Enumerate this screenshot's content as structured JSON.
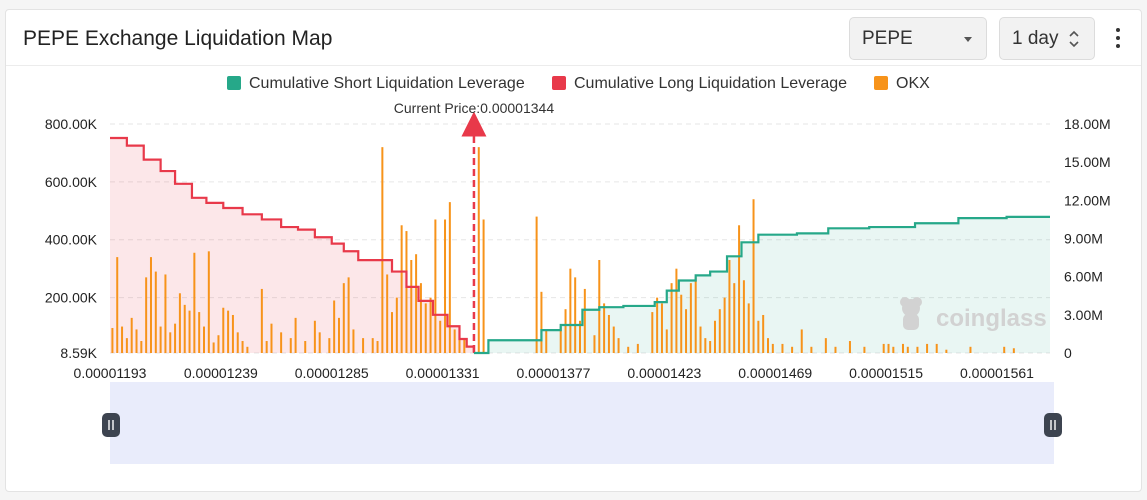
{
  "header": {
    "title": "PEPE Exchange Liquidation Map",
    "coin_select": "PEPE",
    "time_select": "1 day"
  },
  "chart_data": {
    "type": "bar",
    "current_price_label": "Current Price:0.00001344",
    "current_price": 1.344e-05,
    "legend": [
      {
        "name": "Cumulative Short Liquidation Leverage",
        "color": "#26a889"
      },
      {
        "name": "Cumulative Long Liquidation Leverage",
        "color": "#e8394a"
      },
      {
        "name": "OKX",
        "color": "#f7931a"
      }
    ],
    "x_ticks": [
      "0.00001193",
      "0.00001239",
      "0.00001285",
      "0.00001331",
      "0.00001377",
      "0.00001423",
      "0.00001469",
      "0.00001515",
      "0.00001561"
    ],
    "x_tick_values": [
      1.193e-05,
      1.239e-05,
      1.285e-05,
      1.331e-05,
      1.377e-05,
      1.423e-05,
      1.469e-05,
      1.515e-05,
      1.561e-05
    ],
    "xlim": [
      1.193e-05,
      1.583e-05
    ],
    "left_axis": {
      "ticks": [
        "8.59K",
        "200.00K",
        "400.00K",
        "600.00K",
        "800.00K"
      ],
      "tick_values": [
        8590,
        200000,
        400000,
        600000,
        800000
      ],
      "ylim": [
        8590,
        800000
      ]
    },
    "right_axis": {
      "ticks": [
        "0",
        "3.00M",
        "6.00M",
        "9.00M",
        "12.00M",
        "15.00M",
        "18.00M"
      ],
      "tick_values": [
        0,
        3000000,
        6000000,
        9000000,
        12000000,
        15000000,
        18000000
      ],
      "ylim": [
        0,
        18000000
      ]
    },
    "long_cumulative": [
      [
        1.193e-05,
        16900000
      ],
      [
        1.2e-05,
        16300000
      ],
      [
        1.207e-05,
        15200000
      ],
      [
        1.214e-05,
        14300000
      ],
      [
        1.22e-05,
        13300000
      ],
      [
        1.227e-05,
        12200000
      ],
      [
        1.233e-05,
        11800000
      ],
      [
        1.24e-05,
        11400000
      ],
      [
        1.248e-05,
        10900000
      ],
      [
        1.256e-05,
        10500000
      ],
      [
        1.264e-05,
        9900000
      ],
      [
        1.271e-05,
        9700000
      ],
      [
        1.278e-05,
        9100000
      ],
      [
        1.285e-05,
        8600000
      ],
      [
        1.29e-05,
        8000000
      ],
      [
        1.296e-05,
        7300000
      ],
      [
        1.306e-05,
        7300000
      ],
      [
        1.31e-05,
        6400000
      ],
      [
        1.316e-05,
        5200000
      ],
      [
        1.321e-05,
        4100000
      ],
      [
        1.327e-05,
        3000000
      ],
      [
        1.333e-05,
        2100000
      ],
      [
        1.338e-05,
        1100000
      ],
      [
        1.341e-05,
        500000
      ],
      [
        1.344e-05,
        0
      ]
    ],
    "short_cumulative": [
      [
        1.344e-05,
        0
      ],
      [
        1.35e-05,
        1000000
      ],
      [
        1.364e-05,
        1000000
      ],
      [
        1.372e-05,
        1800000
      ],
      [
        1.38e-05,
        2200000
      ],
      [
        1.389e-05,
        3400000
      ],
      [
        1.396e-05,
        3600000
      ],
      [
        1.406e-05,
        3700000
      ],
      [
        1.413e-05,
        3700000
      ],
      [
        1.419e-05,
        4000000
      ],
      [
        1.424e-05,
        4900000
      ],
      [
        1.429e-05,
        5700000
      ],
      [
        1.436e-05,
        6100000
      ],
      [
        1.442e-05,
        6400000
      ],
      [
        1.449e-05,
        7600000
      ],
      [
        1.455e-05,
        8700000
      ],
      [
        1.462e-05,
        9300000
      ],
      [
        1.47e-05,
        9300000
      ],
      [
        1.478e-05,
        9400000
      ],
      [
        1.491e-05,
        9800000
      ],
      [
        1.508e-05,
        9900000
      ],
      [
        1.527e-05,
        10200000
      ],
      [
        1.545e-05,
        10600000
      ],
      [
        1.565e-05,
        10700000
      ],
      [
        1.583e-05,
        10700000
      ]
    ],
    "okx_bars": [
      {
        "x": 1.194e-05,
        "v": 95000
      },
      {
        "x": 1.196e-05,
        "v": 340000
      },
      {
        "x": 1.198e-05,
        "v": 100000
      },
      {
        "x": 1.2e-05,
        "v": 60000
      },
      {
        "x": 1.202e-05,
        "v": 130000
      },
      {
        "x": 1.204e-05,
        "v": 90000
      },
      {
        "x": 1.206e-05,
        "v": 50000
      },
      {
        "x": 1.208e-05,
        "v": 270000
      },
      {
        "x": 1.21e-05,
        "v": 340000
      },
      {
        "x": 1.212e-05,
        "v": 290000
      },
      {
        "x": 1.214e-05,
        "v": 100000
      },
      {
        "x": 1.216e-05,
        "v": 280000
      },
      {
        "x": 1.218e-05,
        "v": 80000
      },
      {
        "x": 1.22e-05,
        "v": 110000
      },
      {
        "x": 1.222e-05,
        "v": 215000
      },
      {
        "x": 1.224e-05,
        "v": 175000
      },
      {
        "x": 1.226e-05,
        "v": 155000
      },
      {
        "x": 1.228e-05,
        "v": 355000
      },
      {
        "x": 1.23e-05,
        "v": 150000
      },
      {
        "x": 1.232e-05,
        "v": 100000
      },
      {
        "x": 1.234e-05,
        "v": 360000
      },
      {
        "x": 1.236e-05,
        "v": 45000
      },
      {
        "x": 1.238e-05,
        "v": 70000
      },
      {
        "x": 1.24e-05,
        "v": 165000
      },
      {
        "x": 1.242e-05,
        "v": 155000
      },
      {
        "x": 1.244e-05,
        "v": 140000
      },
      {
        "x": 1.246e-05,
        "v": 80000
      },
      {
        "x": 1.248e-05,
        "v": 50000
      },
      {
        "x": 1.25e-05,
        "v": 30000
      },
      {
        "x": 1.256e-05,
        "v": 230000
      },
      {
        "x": 1.258e-05,
        "v": 50000
      },
      {
        "x": 1.26e-05,
        "v": 110000
      },
      {
        "x": 1.264e-05,
        "v": 80000
      },
      {
        "x": 1.268e-05,
        "v": 60000
      },
      {
        "x": 1.27e-05,
        "v": 130000
      },
      {
        "x": 1.274e-05,
        "v": 50000
      },
      {
        "x": 1.278e-05,
        "v": 120000
      },
      {
        "x": 1.28e-05,
        "v": 80000
      },
      {
        "x": 1.284e-05,
        "v": 60000
      },
      {
        "x": 1.286e-05,
        "v": 190000
      },
      {
        "x": 1.288e-05,
        "v": 130000
      },
      {
        "x": 1.29e-05,
        "v": 250000
      },
      {
        "x": 1.292e-05,
        "v": 270000
      },
      {
        "x": 1.294e-05,
        "v": 90000
      },
      {
        "x": 1.298e-05,
        "v": 60000
      },
      {
        "x": 1.302e-05,
        "v": 60000
      },
      {
        "x": 1.304e-05,
        "v": 50000
      },
      {
        "x": 1.306e-05,
        "v": 720000
      },
      {
        "x": 1.308e-05,
        "v": 280000
      },
      {
        "x": 1.31e-05,
        "v": 150000
      },
      {
        "x": 1.312e-05,
        "v": 200000
      },
      {
        "x": 1.314e-05,
        "v": 450000
      },
      {
        "x": 1.316e-05,
        "v": 430000
      },
      {
        "x": 1.318e-05,
        "v": 330000
      },
      {
        "x": 1.32e-05,
        "v": 350000
      },
      {
        "x": 1.322e-05,
        "v": 250000
      },
      {
        "x": 1.324e-05,
        "v": 180000
      },
      {
        "x": 1.326e-05,
        "v": 200000
      },
      {
        "x": 1.328e-05,
        "v": 470000
      },
      {
        "x": 1.33e-05,
        "v": 120000
      },
      {
        "x": 1.332e-05,
        "v": 470000
      },
      {
        "x": 1.334e-05,
        "v": 530000
      },
      {
        "x": 1.336e-05,
        "v": 90000
      },
      {
        "x": 1.338e-05,
        "v": 100000
      },
      {
        "x": 1.34e-05,
        "v": 60000
      },
      {
        "x": 1.346e-05,
        "v": 720000
      },
      {
        "x": 1.348e-05,
        "v": 470000
      },
      {
        "x": 1.37e-05,
        "v": 480000
      },
      {
        "x": 1.372e-05,
        "v": 220000
      },
      {
        "x": 1.374e-05,
        "v": 90000
      },
      {
        "x": 1.38e-05,
        "v": 100000
      },
      {
        "x": 1.382e-05,
        "v": 160000
      },
      {
        "x": 1.384e-05,
        "v": 300000
      },
      {
        "x": 1.386e-05,
        "v": 270000
      },
      {
        "x": 1.388e-05,
        "v": 120000
      },
      {
        "x": 1.39e-05,
        "v": 230000
      },
      {
        "x": 1.394e-05,
        "v": 70000
      },
      {
        "x": 1.396e-05,
        "v": 330000
      },
      {
        "x": 1.398e-05,
        "v": 180000
      },
      {
        "x": 1.4e-05,
        "v": 140000
      },
      {
        "x": 1.402e-05,
        "v": 100000
      },
      {
        "x": 1.404e-05,
        "v": 60000
      },
      {
        "x": 1.408e-05,
        "v": 30000
      },
      {
        "x": 1.412e-05,
        "v": 40000
      },
      {
        "x": 1.418e-05,
        "v": 150000
      },
      {
        "x": 1.42e-05,
        "v": 200000
      },
      {
        "x": 1.422e-05,
        "v": 180000
      },
      {
        "x": 1.424e-05,
        "v": 90000
      },
      {
        "x": 1.426e-05,
        "v": 250000
      },
      {
        "x": 1.428e-05,
        "v": 300000
      },
      {
        "x": 1.43e-05,
        "v": 210000
      },
      {
        "x": 1.432e-05,
        "v": 160000
      },
      {
        "x": 1.434e-05,
        "v": 250000
      },
      {
        "x": 1.436e-05,
        "v": 270000
      },
      {
        "x": 1.438e-05,
        "v": 100000
      },
      {
        "x": 1.44e-05,
        "v": 60000
      },
      {
        "x": 1.442e-05,
        "v": 50000
      },
      {
        "x": 1.444e-05,
        "v": 120000
      },
      {
        "x": 1.446e-05,
        "v": 160000
      },
      {
        "x": 1.448e-05,
        "v": 200000
      },
      {
        "x": 1.45e-05,
        "v": 330000
      },
      {
        "x": 1.452e-05,
        "v": 250000
      },
      {
        "x": 1.454e-05,
        "v": 450000
      },
      {
        "x": 1.456e-05,
        "v": 260000
      },
      {
        "x": 1.458e-05,
        "v": 180000
      },
      {
        "x": 1.46e-05,
        "v": 540000
      },
      {
        "x": 1.462e-05,
        "v": 120000
      },
      {
        "x": 1.464e-05,
        "v": 140000
      },
      {
        "x": 1.466e-05,
        "v": 60000
      },
      {
        "x": 1.468e-05,
        "v": 40000
      },
      {
        "x": 1.472e-05,
        "v": 40000
      },
      {
        "x": 1.476e-05,
        "v": 30000
      },
      {
        "x": 1.48e-05,
        "v": 90000
      },
      {
        "x": 1.484e-05,
        "v": 30000
      },
      {
        "x": 1.49e-05,
        "v": 60000
      },
      {
        "x": 1.494e-05,
        "v": 30000
      },
      {
        "x": 1.5e-05,
        "v": 50000
      },
      {
        "x": 1.506e-05,
        "v": 30000
      },
      {
        "x": 1.514e-05,
        "v": 40000
      },
      {
        "x": 1.516e-05,
        "v": 40000
      },
      {
        "x": 1.518e-05,
        "v": 30000
      },
      {
        "x": 1.522e-05,
        "v": 40000
      },
      {
        "x": 1.524e-05,
        "v": 30000
      },
      {
        "x": 1.528e-05,
        "v": 30000
      },
      {
        "x": 1.532e-05,
        "v": 40000
      },
      {
        "x": 1.536e-05,
        "v": 40000
      },
      {
        "x": 1.54e-05,
        "v": 20000
      },
      {
        "x": 1.55e-05,
        "v": 30000
      },
      {
        "x": 1.564e-05,
        "v": 30000
      },
      {
        "x": 1.568e-05,
        "v": 25000
      }
    ],
    "watermark": "coinglass",
    "grid": true,
    "legend_position": "top-center"
  }
}
